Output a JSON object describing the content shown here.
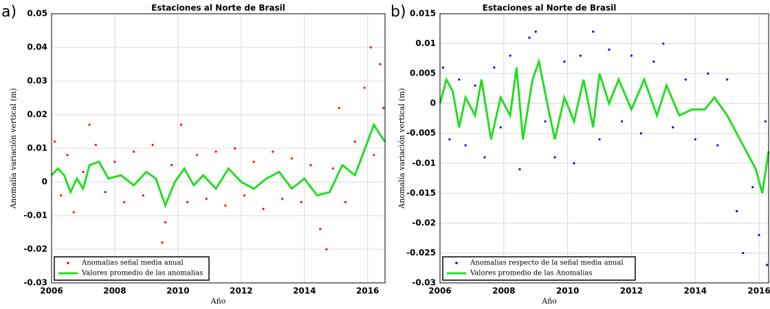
{
  "chart_data": [
    {
      "type": "scatter",
      "panel_label": "a)",
      "title": "Estaciones al Norte de Brasil",
      "x_label": "Año",
      "y_label": "Anomalía variación vertical (m)",
      "xlim": [
        2006,
        2016.55
      ],
      "xticks": [
        2006,
        2008,
        2010,
        2012,
        2014,
        2016
      ],
      "ylim": [
        -0.03,
        0.05
      ],
      "yticks": [
        -0.03,
        -0.02,
        -0.01,
        0,
        0.01,
        0.02,
        0.03,
        0.04,
        0.05
      ],
      "grid": true,
      "legend": "lower left",
      "series": [
        {
          "name": "Anomalias señal media anual",
          "type": "scatter",
          "color": "#ff0000",
          "x": [
            2006.1,
            2006.3,
            2006.5,
            2006.7,
            2007.0,
            2007.2,
            2007.4,
            2007.7,
            2008.0,
            2008.3,
            2008.6,
            2008.9,
            2009.2,
            2009.5,
            2009.6,
            2009.8,
            2010.1,
            2010.3,
            2010.6,
            2010.9,
            2011.2,
            2011.5,
            2011.8,
            2012.1,
            2012.4,
            2012.7,
            2013.0,
            2013.3,
            2013.6,
            2013.9,
            2014.2,
            2014.5,
            2014.7,
            2014.9,
            2015.1,
            2015.3,
            2015.6,
            2015.9,
            2016.1,
            2016.2,
            2016.4,
            2016.5
          ],
          "y": [
            0.012,
            -0.004,
            0.008,
            -0.009,
            0.003,
            0.017,
            0.011,
            -0.003,
            0.006,
            -0.006,
            0.009,
            -0.004,
            0.011,
            -0.018,
            -0.012,
            0.005,
            0.017,
            -0.006,
            0.008,
            -0.005,
            0.009,
            -0.007,
            0.01,
            -0.004,
            0.006,
            -0.008,
            0.009,
            -0.005,
            0.007,
            -0.006,
            0.005,
            -0.014,
            -0.02,
            0.004,
            0.022,
            -0.006,
            0.012,
            0.028,
            0.04,
            0.008,
            0.035,
            0.022
          ]
        },
        {
          "name": "Valores promedio de las anomalias",
          "type": "line",
          "color": "#22dd22",
          "x": [
            2006,
            2006.2,
            2006.4,
            2006.6,
            2006.8,
            2007.0,
            2007.2,
            2007.5,
            2007.8,
            2008.2,
            2008.6,
            2009.0,
            2009.3,
            2009.6,
            2009.9,
            2010.2,
            2010.5,
            2010.8,
            2011.2,
            2011.6,
            2012.0,
            2012.4,
            2012.8,
            2013.2,
            2013.6,
            2014.0,
            2014.4,
            2014.8,
            2015.0,
            2015.2,
            2015.6,
            2016.0,
            2016.2,
            2016.4,
            2016.55
          ],
          "y": [
            0.002,
            0.004,
            0.002,
            -0.003,
            0.001,
            -0.002,
            0.005,
            0.006,
            0.001,
            0.002,
            -0.001,
            0.003,
            0.001,
            -0.007,
            0.0,
            0.004,
            -0.001,
            0.002,
            -0.002,
            0.004,
            0.0,
            -0.002,
            0.001,
            0.003,
            -0.002,
            0.001,
            -0.004,
            -0.003,
            0.001,
            0.005,
            0.002,
            0.012,
            0.017,
            0.014,
            0.012
          ]
        }
      ]
    },
    {
      "type": "scatter",
      "panel_label": "b)",
      "title": "Estaciones al Norte de Brasil",
      "x_label": "Año",
      "y_label": "Anomalía variación vertical (m)",
      "xlim": [
        2006,
        2016.3
      ],
      "xticks": [
        2006,
        2008,
        2010,
        2012,
        2014,
        2016
      ],
      "ylim": [
        -0.03,
        0.015
      ],
      "yticks": [
        -0.03,
        -0.025,
        -0.02,
        -0.015,
        -0.01,
        -0.005,
        0,
        0.005,
        0.01,
        0.015
      ],
      "grid": true,
      "legend": "lower left",
      "series": [
        {
          "name": "Anomalias respecto de la señal media anual",
          "type": "scatter",
          "color": "#0000ee",
          "x": [
            2006.1,
            2006.3,
            2006.6,
            2006.8,
            2007.1,
            2007.4,
            2007.7,
            2007.9,
            2008.2,
            2008.5,
            2008.8,
            2009.0,
            2009.3,
            2009.6,
            2009.9,
            2010.2,
            2010.4,
            2010.8,
            2011.0,
            2011.3,
            2011.7,
            2012.0,
            2012.3,
            2012.7,
            2013.0,
            2013.3,
            2013.7,
            2014.0,
            2014.4,
            2014.7,
            2015.0,
            2015.3,
            2015.5,
            2015.8,
            2016.0,
            2016.2,
            2016.25
          ],
          "y": [
            0.006,
            -0.006,
            0.004,
            -0.007,
            0.003,
            -0.009,
            0.006,
            -0.004,
            0.008,
            -0.011,
            0.011,
            0.012,
            -0.003,
            -0.009,
            0.007,
            -0.01,
            0.008,
            0.012,
            -0.006,
            0.009,
            -0.003,
            0.008,
            -0.005,
            0.007,
            0.01,
            -0.004,
            0.004,
            -0.006,
            0.005,
            -0.007,
            0.004,
            -0.018,
            -0.025,
            -0.014,
            -0.022,
            -0.003,
            -0.027
          ]
        },
        {
          "name": "Valores promedio de las Anomalias",
          "type": "line",
          "color": "#22dd22",
          "x": [
            2006,
            2006.2,
            2006.4,
            2006.6,
            2006.8,
            2007.1,
            2007.3,
            2007.6,
            2007.9,
            2008.2,
            2008.4,
            2008.6,
            2008.9,
            2009.1,
            2009.4,
            2009.6,
            2009.9,
            2010.2,
            2010.5,
            2010.8,
            2011.0,
            2011.3,
            2011.6,
            2012.0,
            2012.4,
            2012.8,
            2013.1,
            2013.5,
            2013.9,
            2014.3,
            2014.6,
            2015.0,
            2015.3,
            2015.6,
            2015.9,
            2016.1,
            2016.3
          ],
          "y": [
            0.0,
            0.004,
            0.002,
            -0.004,
            0.001,
            -0.002,
            0.004,
            -0.006,
            0.001,
            -0.002,
            0.006,
            -0.006,
            0.004,
            0.007,
            -0.001,
            -0.006,
            0.001,
            -0.003,
            0.004,
            -0.004,
            0.005,
            0.0,
            0.004,
            -0.001,
            0.004,
            -0.002,
            0.003,
            -0.002,
            -0.001,
            -0.001,
            0.001,
            -0.002,
            -0.005,
            -0.008,
            -0.011,
            -0.015,
            -0.008
          ]
        }
      ]
    }
  ]
}
